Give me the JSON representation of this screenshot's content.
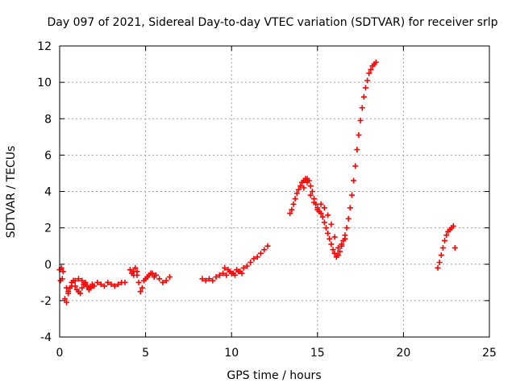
{
  "chart_data": {
    "type": "scatter",
    "title": "Day 097 of 2021, Sidereal Day-to-day VTEC variation (SDTVAR) for receiver srlp",
    "xlabel": "GPS time / hours",
    "ylabel": "SDTVAR / TECUs",
    "xlim": [
      0,
      25
    ],
    "ylim": [
      -4,
      12
    ],
    "xticks": [
      "0",
      "5",
      "10",
      "15",
      "20",
      "25"
    ],
    "yticks": [
      "-4",
      "-2",
      "0",
      "2",
      "4",
      "6",
      "8",
      "10",
      "12"
    ],
    "grid": true,
    "marker": "plus",
    "color": "#ff0000",
    "series": [
      {
        "x": [
          0.0,
          0.05,
          0.1,
          0.15,
          0.2,
          0.3,
          0.4,
          0.5,
          0.6,
          0.7,
          0.8,
          0.9,
          1.0,
          1.1,
          1.2,
          1.3,
          1.4,
          1.5,
          1.6,
          1.7,
          1.8,
          1.9,
          2.0,
          2.2,
          2.4,
          2.6,
          2.8,
          3.0,
          3.2,
          3.4,
          3.6,
          3.8,
          0.4,
          0.5,
          0.7,
          0.9,
          1.1,
          1.3,
          1.5,
          1.7,
          1.9
        ],
        "y": [
          -0.3,
          -0.9,
          -0.2,
          -0.8,
          -0.4,
          -1.9,
          -2.1,
          -1.6,
          -1.3,
          -1.0,
          -0.9,
          -1.2,
          -1.4,
          -1.5,
          -1.6,
          -1.3,
          -1.1,
          -1.0,
          -1.2,
          -1.4,
          -1.3,
          -1.1,
          -1.2,
          -1.0,
          -1.1,
          -1.2,
          -1.0,
          -1.1,
          -1.2,
          -1.1,
          -1.0,
          -1.0,
          -1.3,
          -1.5,
          -1.2,
          -0.9,
          -0.8,
          -0.9,
          -1.1,
          -1.3,
          -1.2
        ]
      },
      {
        "x": [
          4.1,
          4.2,
          4.3,
          4.4,
          4.5,
          4.6,
          4.8,
          5.0,
          5.2,
          5.4,
          5.6,
          5.8,
          6.0,
          6.2,
          6.4,
          4.3,
          4.5,
          4.7,
          4.9,
          5.1,
          5.3,
          5.5
        ],
        "y": [
          -0.3,
          -0.5,
          -0.4,
          -0.2,
          -0.6,
          -1.0,
          -1.3,
          -0.8,
          -0.6,
          -0.5,
          -0.6,
          -0.8,
          -1.0,
          -0.9,
          -0.7,
          -0.6,
          -0.4,
          -1.5,
          -0.9,
          -0.7,
          -0.5,
          -0.7
        ]
      },
      {
        "x": [
          8.3,
          8.5,
          8.7,
          8.9,
          9.1,
          9.3,
          9.5,
          9.7,
          9.9,
          10.1,
          10.3,
          10.5,
          10.7,
          10.9,
          11.1,
          11.3,
          11.5,
          11.7,
          11.9,
          12.1,
          9.6,
          9.8,
          10.0,
          10.2,
          10.4,
          10.6
        ],
        "y": [
          -0.8,
          -0.9,
          -0.8,
          -0.9,
          -0.7,
          -0.6,
          -0.5,
          -0.6,
          -0.4,
          -0.5,
          -0.3,
          -0.4,
          -0.2,
          -0.1,
          0.1,
          0.3,
          0.4,
          0.6,
          0.8,
          1.0,
          -0.2,
          -0.3,
          -0.5,
          -0.6,
          -0.4,
          -0.5
        ]
      },
      {
        "x": [
          13.4,
          13.5,
          13.6,
          13.7,
          13.8,
          13.9,
          14.0,
          14.1,
          14.2,
          14.3,
          14.4,
          14.5,
          14.6,
          14.7,
          14.8,
          14.9,
          15.0,
          15.1,
          15.2,
          15.3,
          15.4,
          15.5,
          15.6,
          15.7,
          15.8,
          15.9,
          16.0,
          16.1,
          16.2,
          16.3,
          16.4,
          16.5,
          16.6,
          16.7,
          16.8,
          16.9,
          17.0,
          17.1,
          17.2,
          17.3,
          17.4,
          17.5,
          17.6,
          17.7,
          17.8,
          17.9,
          18.0,
          18.1,
          18.2,
          18.3,
          18.4,
          14.2,
          14.4,
          14.6,
          14.8,
          15.0,
          15.2,
          15.4,
          15.6,
          15.8,
          16.0,
          16.2,
          16.4,
          16.6
        ],
        "y": [
          2.8,
          3.0,
          3.3,
          3.6,
          3.9,
          4.1,
          4.3,
          4.5,
          4.6,
          4.7,
          4.7,
          4.6,
          4.3,
          4.0,
          3.6,
          3.3,
          3.0,
          2.9,
          2.8,
          2.6,
          2.3,
          2.0,
          1.7,
          1.4,
          1.1,
          0.8,
          0.6,
          0.4,
          0.5,
          0.7,
          1.0,
          1.3,
          1.6,
          2.0,
          2.5,
          3.1,
          3.8,
          4.6,
          5.4,
          6.3,
          7.1,
          7.9,
          8.6,
          9.2,
          9.7,
          10.1,
          10.5,
          10.7,
          10.9,
          11.0,
          11.1,
          4.2,
          4.5,
          3.8,
          3.4,
          3.1,
          3.3,
          3.1,
          2.7,
          2.2,
          1.5,
          0.9,
          1.1,
          1.4
        ]
      },
      {
        "x": [
          22.0,
          22.1,
          22.2,
          22.3,
          22.4,
          22.5,
          22.6,
          22.7,
          22.8,
          22.9,
          23.0
        ],
        "y": [
          -0.2,
          0.1,
          0.5,
          0.9,
          1.3,
          1.6,
          1.8,
          1.9,
          2.0,
          2.1,
          0.9
        ]
      }
    ]
  }
}
